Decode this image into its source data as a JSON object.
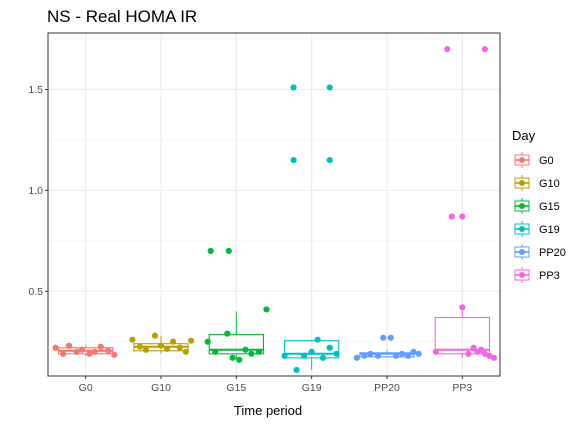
{
  "chart_data": {
    "type": "box",
    "title": "NS - Real HOMA IR",
    "xlabel": "Time period",
    "ylabel": "",
    "ylim": [
      0.08,
      1.78
    ],
    "yticks": [
      0.5,
      1.0,
      1.5
    ],
    "ytick_labels": [
      "0.5",
      "1.0",
      "1.5"
    ],
    "categories": [
      "G0",
      "G10",
      "G15",
      "G19",
      "PP20",
      "PP3"
    ],
    "grid": true,
    "legend": {
      "title": "Day",
      "position": "right",
      "entries": [
        "G0",
        "G10",
        "G15",
        "G19",
        "PP20",
        "PP3"
      ]
    },
    "colors": [
      "#F8766D",
      "#B79F00",
      "#00BA38",
      "#00BFC4",
      "#619CFF",
      "#F564E3"
    ],
    "series": [
      {
        "name": "G0",
        "box": {
          "min": 0.18,
          "q1": 0.19,
          "median": 0.205,
          "q3": 0.22,
          "max": 0.235
        },
        "points": [
          {
            "dx": -0.4,
            "y": 0.22
          },
          {
            "dx": -0.3,
            "y": 0.19
          },
          {
            "dx": -0.22,
            "y": 0.23
          },
          {
            "dx": -0.12,
            "y": 0.2
          },
          {
            "dx": -0.05,
            "y": 0.21
          },
          {
            "dx": 0.05,
            "y": 0.19
          },
          {
            "dx": 0.12,
            "y": 0.2
          },
          {
            "dx": 0.2,
            "y": 0.225
          },
          {
            "dx": 0.3,
            "y": 0.205
          },
          {
            "dx": 0.38,
            "y": 0.185
          }
        ]
      },
      {
        "name": "G10",
        "box": {
          "min": 0.19,
          "q1": 0.205,
          "median": 0.225,
          "q3": 0.24,
          "max": 0.28
        },
        "points": [
          {
            "dx": -0.38,
            "y": 0.26
          },
          {
            "dx": -0.28,
            "y": 0.225
          },
          {
            "dx": -0.2,
            "y": 0.21
          },
          {
            "dx": -0.08,
            "y": 0.28
          },
          {
            "dx": 0.0,
            "y": 0.23
          },
          {
            "dx": 0.08,
            "y": 0.215
          },
          {
            "dx": 0.16,
            "y": 0.25
          },
          {
            "dx": 0.25,
            "y": 0.22
          },
          {
            "dx": 0.33,
            "y": 0.2
          },
          {
            "dx": 0.4,
            "y": 0.255
          }
        ]
      },
      {
        "name": "G15",
        "box": {
          "min": 0.16,
          "q1": 0.19,
          "median": 0.21,
          "q3": 0.285,
          "max": 0.4
        },
        "points": [
          {
            "dx": -0.34,
            "y": 0.7
          },
          {
            "dx": -0.1,
            "y": 0.7
          },
          {
            "dx": -0.38,
            "y": 0.25
          },
          {
            "dx": -0.12,
            "y": 0.29
          },
          {
            "dx": 0.4,
            "y": 0.41
          },
          {
            "dx": -0.28,
            "y": 0.2
          },
          {
            "dx": -0.05,
            "y": 0.17
          },
          {
            "dx": 0.04,
            "y": 0.16
          },
          {
            "dx": 0.12,
            "y": 0.21
          },
          {
            "dx": 0.2,
            "y": 0.19
          },
          {
            "dx": 0.3,
            "y": 0.2
          }
        ]
      },
      {
        "name": "G19",
        "box": {
          "min": 0.11,
          "q1": 0.17,
          "median": 0.19,
          "q3": 0.255,
          "max": 0.26
        },
        "points": [
          {
            "dx": -0.24,
            "y": 1.51
          },
          {
            "dx": 0.24,
            "y": 1.51
          },
          {
            "dx": -0.24,
            "y": 1.15
          },
          {
            "dx": 0.24,
            "y": 1.15
          },
          {
            "dx": -0.36,
            "y": 0.18
          },
          {
            "dx": -0.2,
            "y": 0.11
          },
          {
            "dx": -0.1,
            "y": 0.18
          },
          {
            "dx": 0.0,
            "y": 0.2
          },
          {
            "dx": 0.08,
            "y": 0.26
          },
          {
            "dx": 0.15,
            "y": 0.17
          },
          {
            "dx": 0.24,
            "y": 0.22
          },
          {
            "dx": 0.33,
            "y": 0.19
          }
        ]
      },
      {
        "name": "PP20",
        "box": {
          "min": 0.17,
          "q1": 0.175,
          "median": 0.19,
          "q3": 0.195,
          "max": 0.21
        },
        "points": [
          {
            "dx": -0.4,
            "y": 0.17
          },
          {
            "dx": -0.3,
            "y": 0.18
          },
          {
            "dx": -0.22,
            "y": 0.19
          },
          {
            "dx": -0.12,
            "y": 0.18
          },
          {
            "dx": -0.05,
            "y": 0.27
          },
          {
            "dx": 0.05,
            "y": 0.27
          },
          {
            "dx": 0.12,
            "y": 0.18
          },
          {
            "dx": 0.2,
            "y": 0.19
          },
          {
            "dx": 0.28,
            "y": 0.18
          },
          {
            "dx": 0.35,
            "y": 0.2
          },
          {
            "dx": 0.42,
            "y": 0.19
          }
        ]
      },
      {
        "name": "PP3",
        "box": {
          "min": 0.17,
          "q1": 0.19,
          "median": 0.21,
          "q3": 0.37,
          "max": 0.42
        },
        "points": [
          {
            "dx": -0.2,
            "y": 1.7
          },
          {
            "dx": 0.3,
            "y": 1.7
          },
          {
            "dx": -0.14,
            "y": 0.87
          },
          {
            "dx": 0.0,
            "y": 0.87
          },
          {
            "dx": 0.0,
            "y": 0.42
          },
          {
            "dx": -0.35,
            "y": 0.2
          },
          {
            "dx": 0.08,
            "y": 0.19
          },
          {
            "dx": 0.15,
            "y": 0.22
          },
          {
            "dx": 0.2,
            "y": 0.2
          },
          {
            "dx": 0.25,
            "y": 0.21
          },
          {
            "dx": 0.3,
            "y": 0.19
          },
          {
            "dx": 0.36,
            "y": 0.18
          },
          {
            "dx": 0.42,
            "y": 0.17
          }
        ]
      }
    ]
  }
}
